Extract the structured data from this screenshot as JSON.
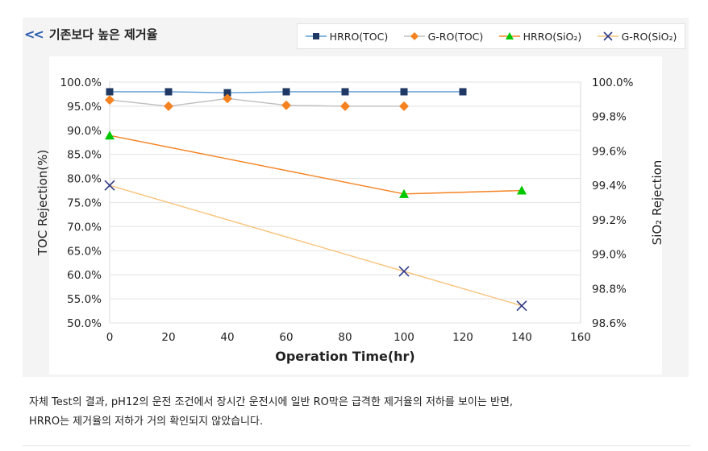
{
  "header": {
    "icon": "double-chevron-left-icon",
    "title": "기존보다 높은 제거율"
  },
  "chart_data": {
    "type": "line",
    "xlabel": "Operation Time(hr)",
    "ylabel": "TOC Rejection(%)",
    "y2label": "SiO₂ Rejection",
    "x_ticks": [
      "0",
      "20",
      "40",
      "60",
      "80",
      "100",
      "120",
      "140",
      "160"
    ],
    "xlim": [
      0,
      160
    ],
    "y_ticks": [
      "100.0%",
      "95.0%",
      "90.0%",
      "85.0%",
      "80.0%",
      "75.0%",
      "70.0%",
      "65.0%",
      "60.0%",
      "55.0%",
      "50.0%"
    ],
    "ylim": [
      50,
      100
    ],
    "y2_ticks": [
      "100.0%",
      "99.8%",
      "99.6%",
      "99.4%",
      "99.2%",
      "99.0%",
      "98.8%",
      "98.6%"
    ],
    "y2lim": [
      98.6,
      100
    ],
    "grid": "horizontal",
    "legend_position": "top-right",
    "series": [
      {
        "name": "HRRO(TOC)",
        "axis": "left",
        "marker": "square",
        "marker_color": "#1f3864",
        "line_color": "#5b9bd5",
        "x": [
          0,
          20,
          40,
          60,
          80,
          100,
          120
        ],
        "y": [
          98.0,
          98.0,
          97.8,
          98.0,
          98.0,
          98.0,
          98.0
        ]
      },
      {
        "name": "G-RO(TOC)",
        "axis": "left",
        "marker": "diamond",
        "marker_color": "#f58220",
        "line_color": "#bfbfbf",
        "x": [
          0,
          20,
          40,
          60,
          80,
          100
        ],
        "y": [
          96.3,
          95.0,
          96.6,
          95.2,
          95.0,
          95.0
        ]
      },
      {
        "name": "HRRO(SiO₂)",
        "axis": "right",
        "marker": "triangle",
        "marker_color": "#00c800",
        "line_color": "#f58220",
        "x": [
          0,
          100,
          140
        ],
        "y": [
          99.69,
          99.35,
          99.37
        ]
      },
      {
        "name": "G-RO(SiO₂)",
        "axis": "right",
        "marker": "x",
        "marker_color": "#2e3a87",
        "line_color": "#f8c37a",
        "x": [
          0,
          100,
          140
        ],
        "y": [
          99.4,
          98.9,
          98.7
        ]
      }
    ]
  },
  "caption": {
    "line1": "자체 Test의 결과, pH12의 운전 조건에서 장시간 운전시에 일반 RO막은 급격한 제거율의 저하를 보이는 반면,",
    "line2": "HRRO는 제거율의 저하가 거의 확인되지 않았습니다."
  }
}
